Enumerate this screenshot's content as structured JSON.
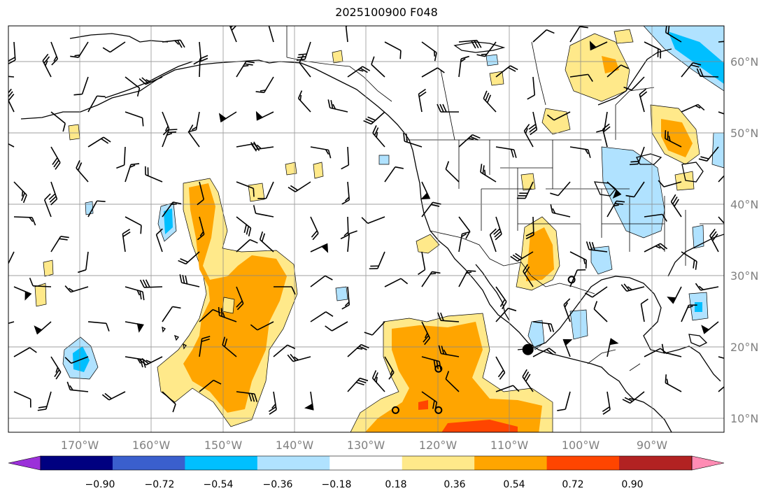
{
  "title": "2025100900 F048",
  "map": {
    "lon_range": [
      -180,
      -80
    ],
    "lat_range": [
      8,
      65
    ],
    "lon_ticks": [
      "170°W",
      "160°W",
      "150°W",
      "140°W",
      "130°W",
      "120°W",
      "110°W",
      "100°W",
      "90°W"
    ],
    "lat_ticks": [
      "10°N",
      "20°N",
      "30°N",
      "40°N",
      "50°N",
      "60°N"
    ],
    "grid": true,
    "markers": [
      {
        "type": "filled-dot",
        "lon": -107.4,
        "lat": 19.6
      },
      {
        "type": "open-circle",
        "lon": -101.3,
        "lat": 29.4
      },
      {
        "type": "open-circle",
        "lon": -119.9,
        "lat": 16.9
      },
      {
        "type": "open-circle",
        "lon": -125.9,
        "lat": 11.1
      },
      {
        "type": "open-circle",
        "lon": -119.9,
        "lat": 11.1
      }
    ]
  },
  "colorbar": {
    "labels": [
      "−0.90",
      "−0.72",
      "−0.54",
      "−0.36",
      "−0.18",
      "0.18",
      "0.36",
      "0.54",
      "0.72",
      "0.90"
    ],
    "colors": [
      "#9b30d9",
      "#000080",
      "#3a5fcd",
      "#00bfff",
      "#b0e2ff",
      "#ffffff",
      "#ffe98a",
      "#ffa500",
      "#ff4500",
      "#b22222",
      "#ff8cb4"
    ],
    "extend": "both"
  }
}
